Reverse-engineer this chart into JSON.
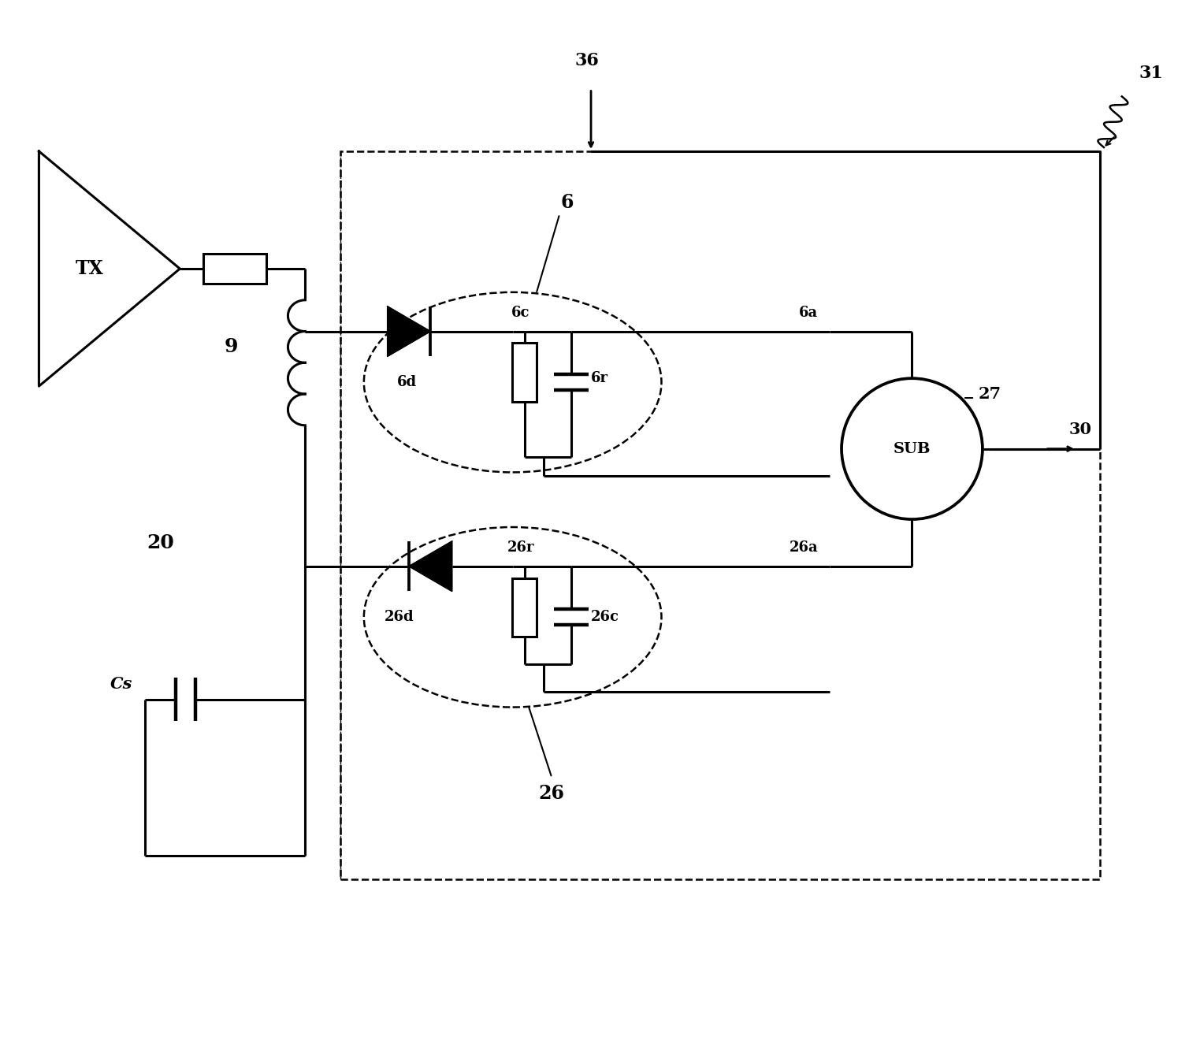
{
  "bg_color": "#ffffff",
  "line_color": "#000000",
  "figsize": [
    15.09,
    13.39
  ],
  "dpi": 100,
  "xlim": [
    0,
    15.09
  ],
  "ylim": [
    0,
    13.39
  ]
}
